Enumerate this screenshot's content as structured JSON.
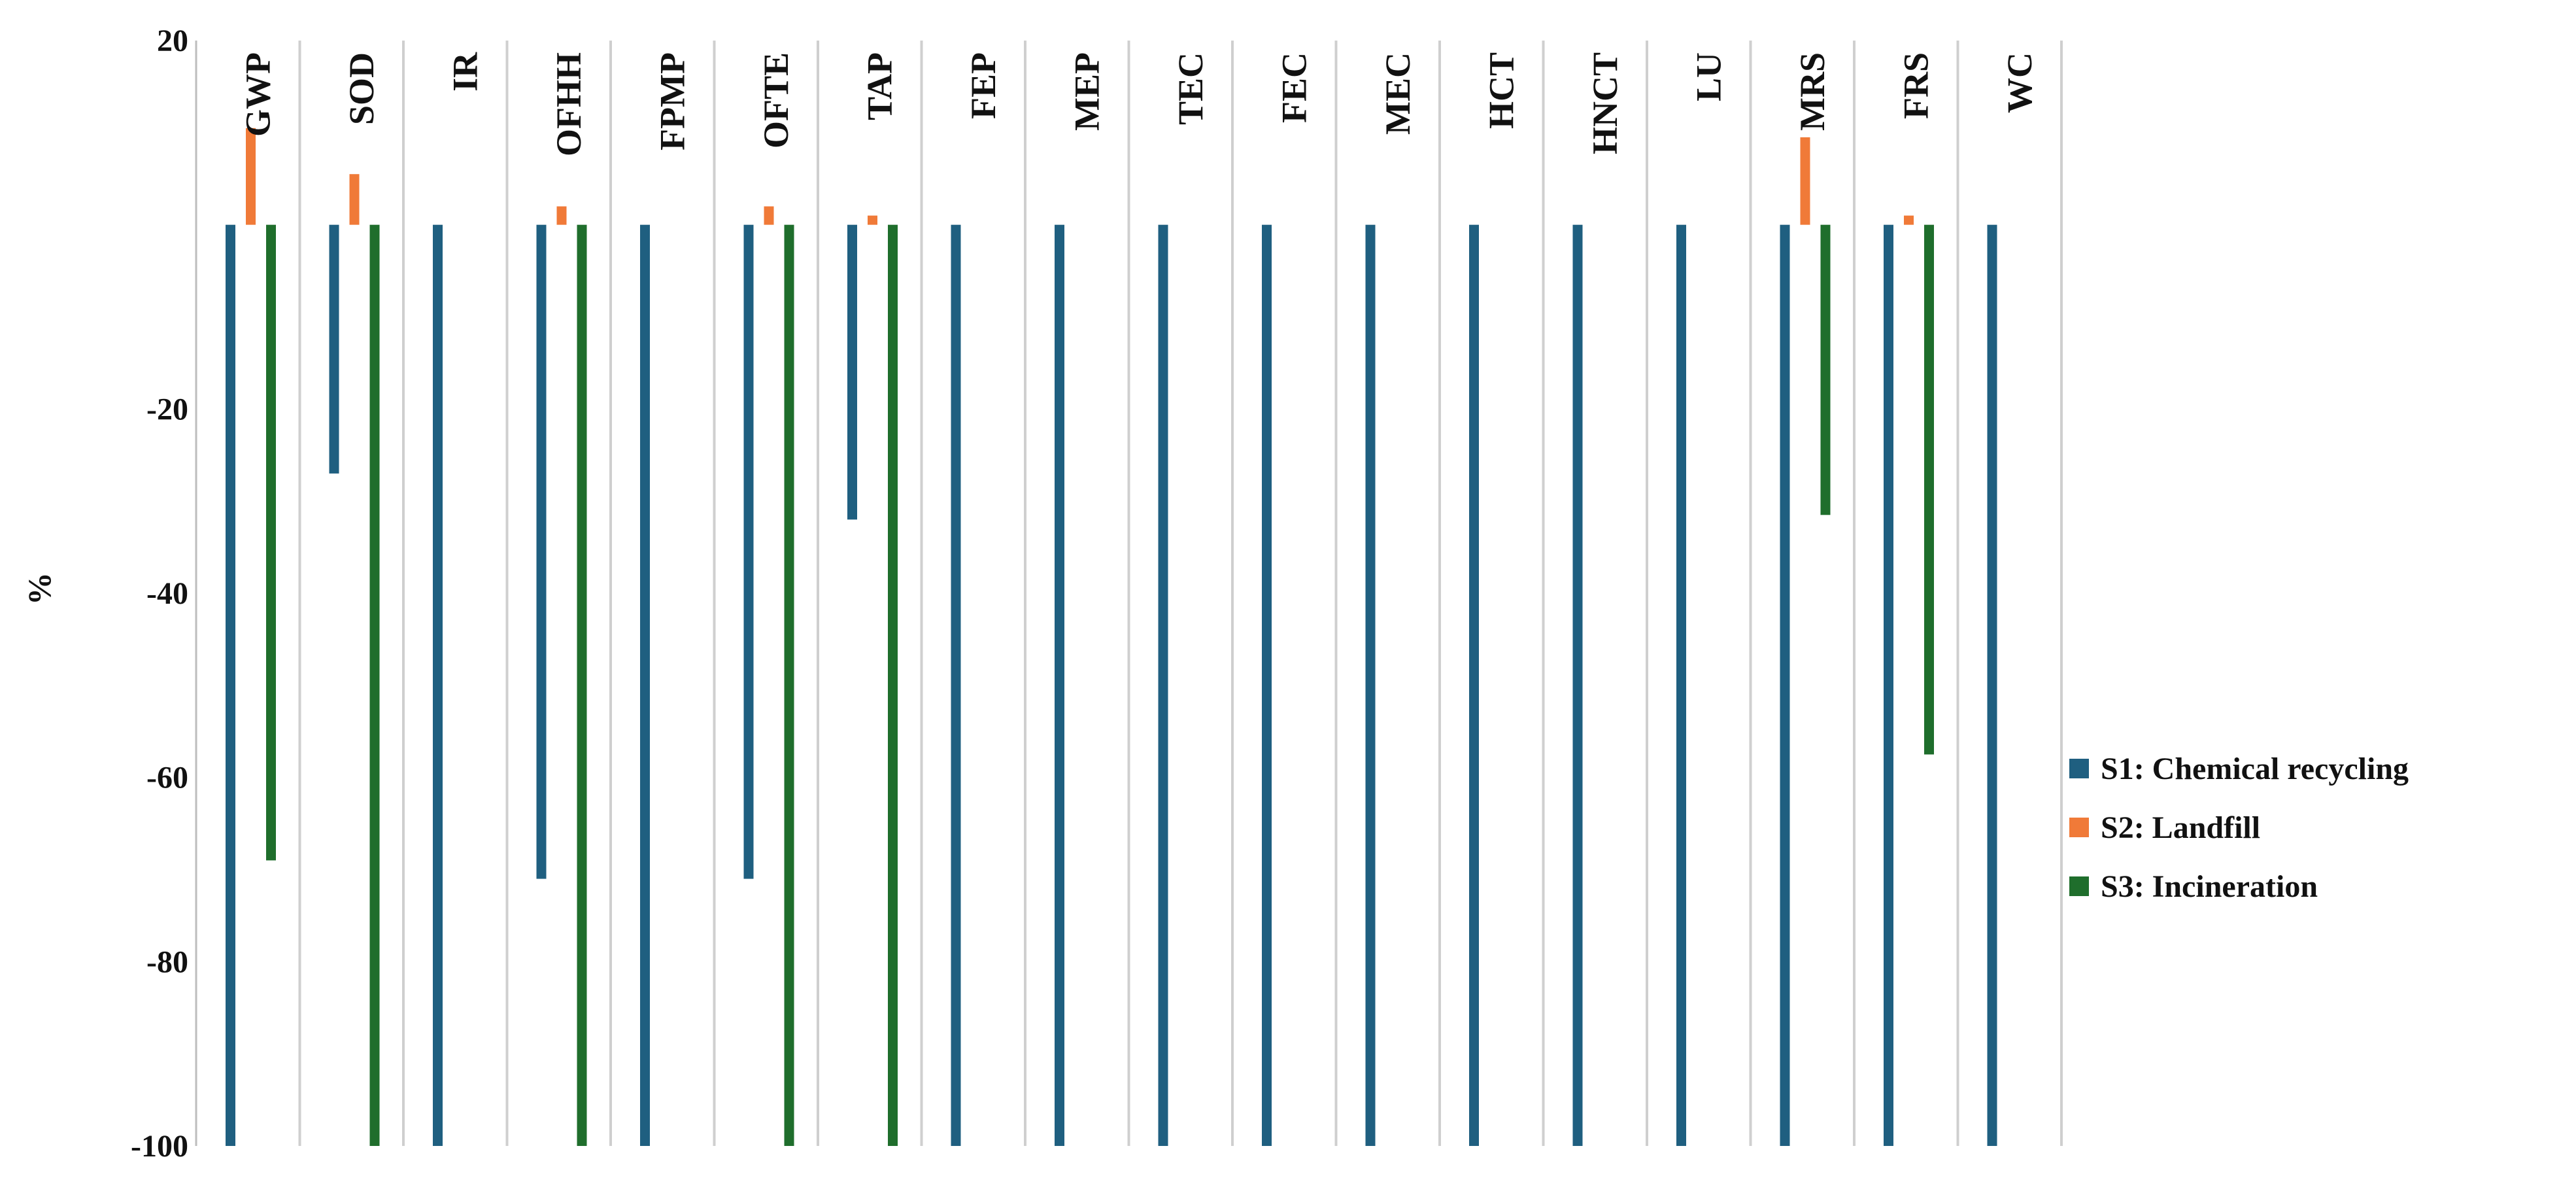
{
  "chart_data": {
    "type": "bar",
    "title": "",
    "xlabel": "",
    "ylabel": "%",
    "ylim": [
      -100,
      20
    ],
    "yticks": [
      20,
      -20,
      -40,
      -60,
      -80,
      -100
    ],
    "gridlines": "vertical category separators",
    "legend_position": "right",
    "categories": [
      "GWP",
      "SOD",
      "IR",
      "OFHH",
      "FPMP",
      "OFTE",
      "TAP",
      "FEP",
      "MEP",
      "TEC",
      "FEC",
      "MEC",
      "HCT",
      "HNCT",
      "LU",
      "MRS",
      "FRS",
      "WC"
    ],
    "series": [
      {
        "name": "S1: Chemical recycling",
        "color": "#1f5f80",
        "values": [
          -100,
          -27,
          -100,
          -71,
          -100,
          -71,
          -32,
          -100,
          -100,
          -100,
          -100,
          -100,
          -100,
          -100,
          -100,
          -100,
          -100,
          -100
        ]
      },
      {
        "name": "S2: Landfill",
        "color": "#f07a38",
        "values": [
          10.5,
          5.5,
          0,
          2,
          0,
          2,
          1,
          0,
          0,
          0,
          0,
          0,
          0,
          0,
          0,
          9.5,
          1,
          0
        ]
      },
      {
        "name": "S3: Incineration",
        "color": "#1f6e2c",
        "values": [
          -69,
          -100,
          0,
          -100,
          0,
          -100,
          -100,
          0,
          0,
          0,
          0,
          0,
          0,
          0,
          0,
          -31.5,
          -57.5,
          0
        ]
      }
    ]
  }
}
